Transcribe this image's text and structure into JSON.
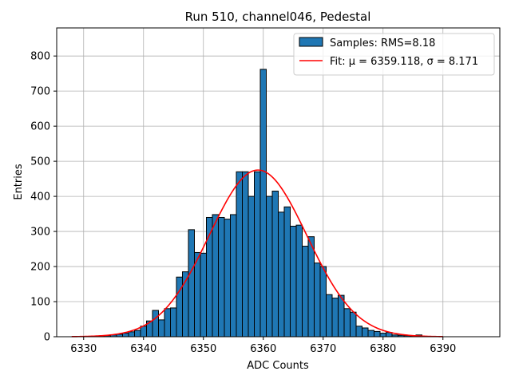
{
  "chart_data": {
    "type": "bar",
    "title": "Run 510, channel046, Pedestal",
    "xlabel": "ADC Counts",
    "ylabel": "Entries",
    "xlim": [
      6325.5,
      6399.5
    ],
    "ylim": [
      0,
      880
    ],
    "xticks": [
      6330,
      6340,
      6350,
      6360,
      6370,
      6380,
      6390
    ],
    "yticks": [
      0,
      100,
      200,
      300,
      400,
      500,
      600,
      700,
      800
    ],
    "grid": true,
    "legend_position": "top-right",
    "bar_color": "#1f77b4",
    "fit_color": "#ff0000",
    "bin_width": 1,
    "bins": [
      6331,
      6332,
      6333,
      6334,
      6335,
      6336,
      6337,
      6338,
      6339,
      6340,
      6341,
      6342,
      6343,
      6344,
      6345,
      6346,
      6347,
      6348,
      6349,
      6350,
      6351,
      6352,
      6353,
      6354,
      6355,
      6356,
      6357,
      6358,
      6359,
      6360,
      6361,
      6362,
      6363,
      6364,
      6365,
      6366,
      6367,
      6368,
      6369,
      6370,
      6371,
      6372,
      6373,
      6374,
      6375,
      6376,
      6377,
      6378,
      6379,
      6380,
      6381,
      6382,
      6383,
      6384,
      6385,
      6386,
      6387
    ],
    "values": [
      1,
      1,
      2,
      3,
      5,
      7,
      10,
      14,
      18,
      30,
      45,
      75,
      48,
      80,
      82,
      170,
      185,
      305,
      240,
      238,
      340,
      348,
      340,
      335,
      348,
      470,
      470,
      400,
      470,
      762,
      400,
      415,
      355,
      370,
      315,
      318,
      258,
      285,
      210,
      200,
      120,
      110,
      118,
      80,
      70,
      30,
      25,
      18,
      15,
      10,
      12,
      5,
      4,
      3,
      2,
      5,
      1
    ],
    "fit": {
      "mu": 6359.118,
      "sigma": 8.171,
      "amplitude": 475,
      "x_range": [
        6328,
        6390
      ]
    },
    "legend": [
      {
        "label": "Samples: RMS=8.18",
        "kind": "patch"
      },
      {
        "label": "Fit: μ = 6359.118, σ = 8.171",
        "kind": "line"
      }
    ]
  }
}
